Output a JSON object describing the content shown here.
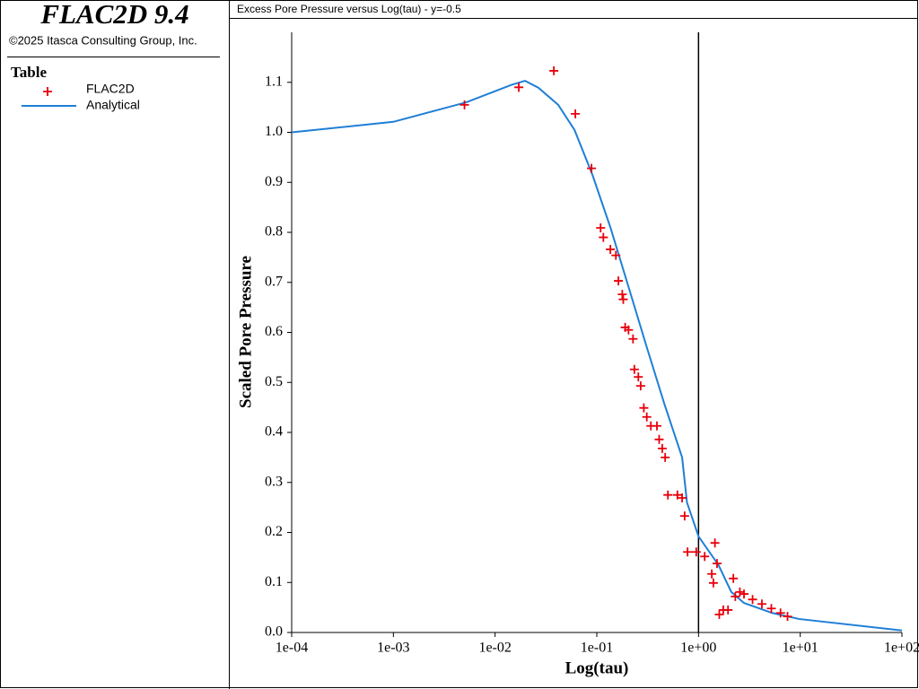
{
  "app": {
    "title": "FLAC2D 9.4",
    "copyright": "©2025 Itasca Consulting Group, Inc."
  },
  "chart_data": {
    "type": "scatter-line",
    "title": "Excess Pore Pressure versus Log(tau) - y=-0.5",
    "legend_title": "Table",
    "x_label": "Log(tau)",
    "y_label": "Scaled Pore Pressure",
    "x_log": true,
    "xlim": [
      0.0001,
      100
    ],
    "ylim": [
      0,
      1.2
    ],
    "xticks": [
      {
        "value": 0.0001,
        "label": "1e-04"
      },
      {
        "value": 0.001,
        "label": "1e-03"
      },
      {
        "value": 0.01,
        "label": "1e-02"
      },
      {
        "value": 0.1,
        "label": "1e-01"
      },
      {
        "value": 1,
        "label": "1e+00"
      },
      {
        "value": 10,
        "label": "1e+01"
      },
      {
        "value": 100,
        "label": "1e+02"
      }
    ],
    "yticks": [
      {
        "value": 0,
        "label": "0.0"
      },
      0.1,
      0.2,
      0.3,
      0.4,
      0.5,
      0.6,
      0.7,
      0.8,
      0.9,
      {
        "value": 1,
        "label": "1.0"
      },
      1.1
    ],
    "vlines": [
      1
    ],
    "series": [
      {
        "name": "FLAC2D",
        "color": "#e8000b",
        "marker": "+",
        "x": [
          0.005,
          0.0171,
          0.0378,
          0.0615,
          0.0887,
          0.109,
          0.116,
          0.136,
          0.154,
          0.163,
          0.178,
          0.182,
          0.19,
          0.205,
          0.227,
          0.234,
          0.256,
          0.27,
          0.29,
          0.31,
          0.34,
          0.39,
          0.41,
          0.44,
          0.47,
          0.5,
          0.62,
          0.69,
          0.73,
          0.78,
          0.95,
          1.15,
          1.35,
          1.4,
          1.45,
          1.52,
          1.6,
          1.75,
          1.95,
          2.2,
          2.3,
          2.55,
          2.8,
          3.4,
          4.2,
          5.2,
          6.4,
          7.5
        ],
        "values": [
          1.055,
          1.09,
          1.123,
          1.037,
          0.928,
          0.809,
          0.79,
          0.766,
          0.754,
          0.703,
          0.676,
          0.666,
          0.61,
          0.605,
          0.587,
          0.526,
          0.511,
          0.493,
          0.449,
          0.431,
          0.413,
          0.413,
          0.386,
          0.368,
          0.35,
          0.275,
          0.275,
          0.269,
          0.233,
          0.161,
          0.161,
          0.152,
          0.117,
          0.099,
          0.179,
          0.138,
          0.036,
          0.045,
          0.045,
          0.108,
          0.072,
          0.081,
          0.077,
          0.066,
          0.057,
          0.048,
          0.039,
          0.032
        ]
      },
      {
        "name": "Analytical",
        "color": "#1f7fd6",
        "marker": "line",
        "x": [
          0.0001,
          0.001,
          0.0052,
          0.0145,
          0.0197,
          0.0267,
          0.0417,
          0.0603,
          0.0906,
          0.137,
          0.205,
          0.306,
          0.46,
          0.69,
          0.77,
          1,
          1.57,
          2.1,
          2.8,
          5.3,
          9.7,
          100
        ],
        "values": [
          1.0,
          1.021,
          1.06,
          1.095,
          1.103,
          1.089,
          1.055,
          1.005,
          0.915,
          0.808,
          0.691,
          0.574,
          0.458,
          0.35,
          0.26,
          0.192,
          0.135,
          0.081,
          0.059,
          0.039,
          0.027,
          0.004
        ]
      }
    ]
  }
}
